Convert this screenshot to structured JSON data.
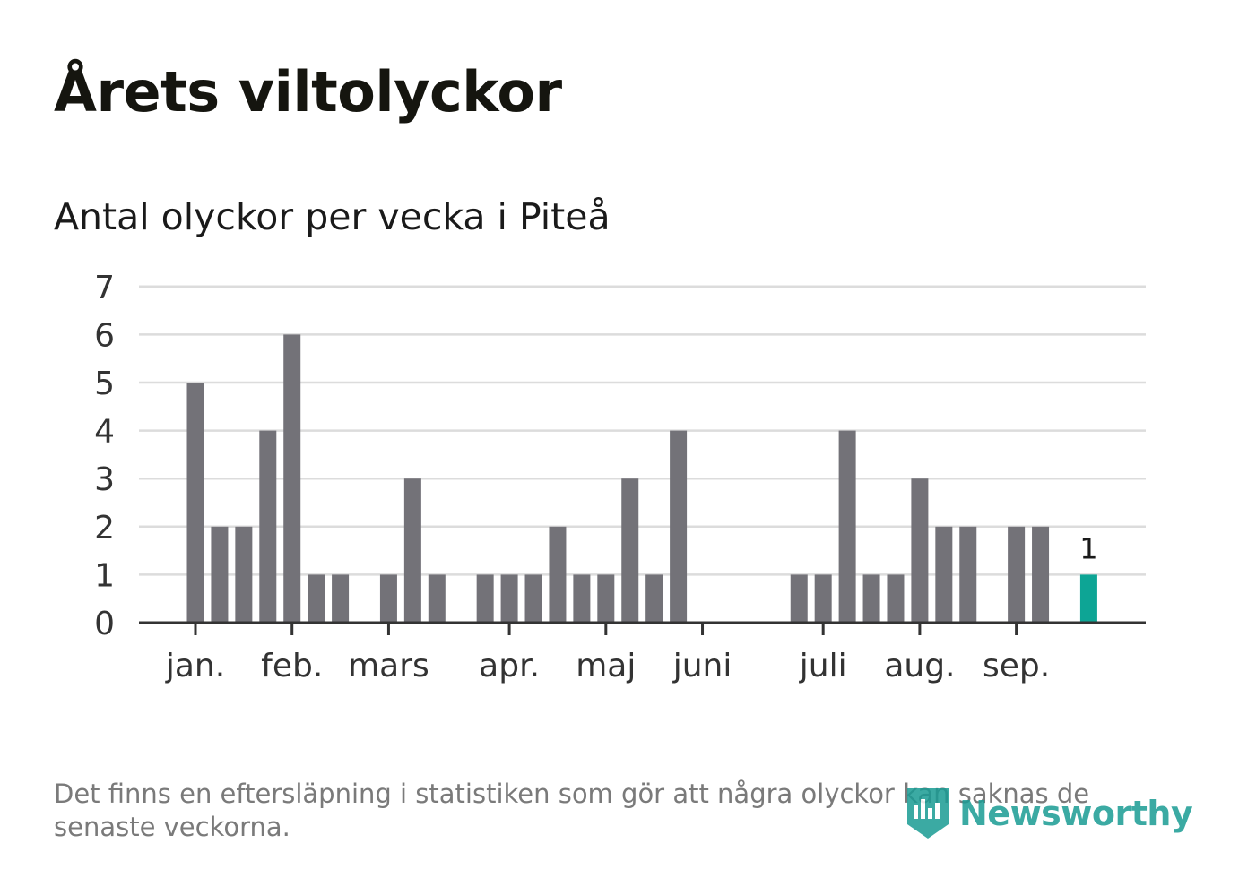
{
  "title": "Årets viltolyckor",
  "chart_data": {
    "type": "bar",
    "title": "Antal olyckor per vecka i Piteå",
    "xlabel": "",
    "ylabel": "",
    "ylim": [
      0,
      7
    ],
    "yticks": [
      "0",
      "1",
      "2",
      "3",
      "4",
      "5",
      "6",
      "7"
    ],
    "weeks": [
      1,
      2,
      3,
      4,
      5,
      6,
      7,
      8,
      9,
      10,
      11,
      12,
      13,
      14,
      15,
      16,
      17,
      18,
      19,
      20,
      21,
      22,
      23,
      24,
      25,
      26,
      27,
      28,
      29,
      30,
      31,
      32,
      33,
      34,
      35,
      36,
      37,
      38
    ],
    "values": [
      5,
      2,
      2,
      4,
      6,
      1,
      1,
      0,
      1,
      3,
      1,
      0,
      1,
      1,
      1,
      2,
      1,
      1,
      3,
      1,
      4,
      0,
      0,
      0,
      0,
      1,
      1,
      4,
      1,
      1,
      3,
      2,
      2,
      0,
      2,
      2,
      0,
      1
    ],
    "highlight_week": 38,
    "highlight_label": "1",
    "month_labels": [
      {
        "label": "jan.",
        "week": 1
      },
      {
        "label": "feb.",
        "week": 5
      },
      {
        "label": "mars",
        "week": 9
      },
      {
        "label": "apr.",
        "week": 14
      },
      {
        "label": "maj",
        "week": 18
      },
      {
        "label": "juni",
        "week": 22
      },
      {
        "label": "juli",
        "week": 27
      },
      {
        "label": "aug.",
        "week": 31
      },
      {
        "label": "sep.",
        "week": 35
      }
    ],
    "colors": {
      "bar": "#737278",
      "highlight": "#0da595",
      "grid": "#dcdcdc",
      "axis": "#333333"
    }
  },
  "footer": {
    "note": "Det finns en eftersläpning i statistiken som gör att några olyckor kan saknas de senaste veckorna.",
    "brand": "Newsworthy",
    "brand_icon": "newsworthy-logo-icon"
  }
}
